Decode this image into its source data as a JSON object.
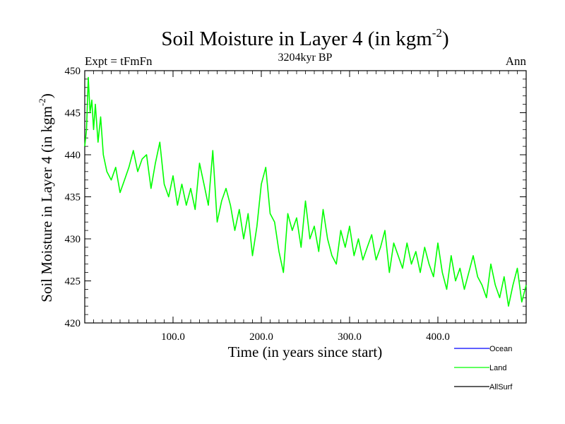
{
  "chart_data": {
    "type": "line",
    "title": "Soil Moisture in Layer 4 (in kgm",
    "title_sup": "-2",
    "title_close": ")",
    "subtitle": "3204kyr BP",
    "left_label": "Expt = tFmFn",
    "right_label": "Ann",
    "xlabel": "Time (in years since start)",
    "ylabel": "Soil Moisture in Layer 4 (in kgm",
    "ylabel_sup": "-2",
    "ylabel_close": ")",
    "xlim": [
      0,
      500
    ],
    "ylim": [
      420,
      450
    ],
    "x_ticks": [
      {
        "value": 100,
        "label": "100.0"
      },
      {
        "value": 200,
        "label": "200.0"
      },
      {
        "value": 300,
        "label": "300.0"
      },
      {
        "value": 400,
        "label": "400.0"
      }
    ],
    "y_ticks": [
      {
        "value": 420,
        "label": "420"
      },
      {
        "value": 425,
        "label": "425"
      },
      {
        "value": 430,
        "label": "430"
      },
      {
        "value": 435,
        "label": "435"
      },
      {
        "value": 440,
        "label": "440"
      },
      {
        "value": 445,
        "label": "445"
      },
      {
        "value": 450,
        "label": "450"
      }
    ],
    "legend": [
      {
        "name": "Ocean",
        "color": "#0000ff"
      },
      {
        "name": "Land",
        "color": "#00ff00"
      },
      {
        "name": "AllSurf",
        "color": "#000000"
      }
    ],
    "series": [
      {
        "name": "Land",
        "color": "#00ff00",
        "x": [
          0,
          2,
          4,
          6,
          8,
          10,
          12,
          15,
          18,
          21,
          25,
          30,
          35,
          40,
          45,
          50,
          55,
          60,
          65,
          70,
          75,
          80,
          85,
          90,
          95,
          100,
          105,
          110,
          115,
          120,
          125,
          130,
          135,
          140,
          145,
          150,
          155,
          160,
          165,
          170,
          175,
          180,
          185,
          190,
          195,
          200,
          205,
          210,
          215,
          220,
          225,
          230,
          235,
          240,
          245,
          250,
          255,
          260,
          265,
          270,
          275,
          280,
          285,
          290,
          295,
          300,
          305,
          310,
          315,
          320,
          325,
          330,
          335,
          340,
          345,
          350,
          355,
          360,
          365,
          370,
          375,
          380,
          385,
          390,
          395,
          400,
          405,
          410,
          415,
          420,
          425,
          430,
          435,
          440,
          445,
          450,
          455,
          460,
          465,
          470,
          475,
          480,
          485,
          490,
          495,
          500
        ],
        "values": [
          441.0,
          443.0,
          449.2,
          445.0,
          446.5,
          443.0,
          446.0,
          441.5,
          444.5,
          440.0,
          438.0,
          437.0,
          438.5,
          435.5,
          437.0,
          438.5,
          440.5,
          438.0,
          439.5,
          440.0,
          436.0,
          439.0,
          441.5,
          436.5,
          435.0,
          437.5,
          434.0,
          436.5,
          434.0,
          436.0,
          433.5,
          439.0,
          436.5,
          434.0,
          440.5,
          432.0,
          434.5,
          436.0,
          434.0,
          431.0,
          433.5,
          430.0,
          433.0,
          428.0,
          431.5,
          436.5,
          438.5,
          433.0,
          432.0,
          428.5,
          426.0,
          433.0,
          431.0,
          432.5,
          429.0,
          434.5,
          430.0,
          431.5,
          428.5,
          433.5,
          430.0,
          428.0,
          427.0,
          431.0,
          429.0,
          431.5,
          428.0,
          430.0,
          427.5,
          429.0,
          430.5,
          427.5,
          429.0,
          431.0,
          426.0,
          429.5,
          428.0,
          426.5,
          429.5,
          427.0,
          428.5,
          426.0,
          429.0,
          427.0,
          425.5,
          429.5,
          426.0,
          424.0,
          428.0,
          425.0,
          426.5,
          424.0,
          426.0,
          428.0,
          425.5,
          424.5,
          423.0,
          427.0,
          424.5,
          423.0,
          425.5,
          422.0,
          424.5,
          426.5,
          422.5,
          424.5
        ]
      }
    ]
  }
}
